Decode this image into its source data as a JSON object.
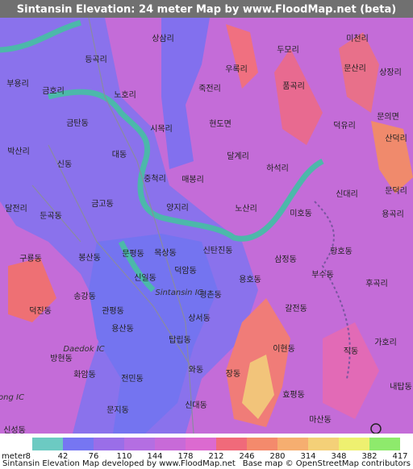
{
  "title": "Sintansin Elevation: 24 meter Map by www.FloodMap.net (beta)",
  "places": [
    "상삼리",
    "미천리",
    "두모리",
    "등곡리",
    "문산리",
    "상장리",
    "부용리",
    "우록리",
    "죽전리",
    "금호리",
    "노호리",
    "품곡리",
    "현도면",
    "금탄동",
    "시목리",
    "덕유리",
    "문의면",
    "산덕리",
    "박산리",
    "대동",
    "달계리",
    "신동",
    "중척리",
    "매봉리",
    "하석리",
    "신대리",
    "문덕리",
    "달전리",
    "금고동",
    "양지리",
    "노산리",
    "미호동",
    "용곡리",
    "둔곡동",
    "황호동",
    "구룡동",
    "봉산동",
    "문평동",
    "목상동",
    "신탄진동",
    "삼정동",
    "덕암동",
    "부수동",
    "신일동",
    "평촌동",
    "용호동",
    "후곡리",
    "송강동",
    "덕진동",
    "관평동",
    "갈전동",
    "상서동",
    "용산동",
    "탑립동",
    "이현동",
    "가호리",
    "직동",
    "방현동",
    "화암동",
    "와동",
    "장동",
    "전민동",
    "내탑동",
    "효평동",
    "문지동",
    "신대동",
    "마산동",
    "신성동",
    "Sintansin IC",
    "Daedok IC",
    "ong IC"
  ],
  "legend": {
    "unit": "meter",
    "ticks": [
      8,
      42,
      76,
      110,
      144,
      178,
      212,
      246,
      280,
      314,
      348,
      382,
      417
    ],
    "colors": [
      "#6ccac2",
      "#7676f2",
      "#9a6ee8",
      "#b46ee2",
      "#c86ad8",
      "#dc6ad0",
      "#f06a7a",
      "#f48a6c",
      "#f6ae70",
      "#f4d078",
      "#eef070",
      "#8eea6c"
    ]
  },
  "footer": {
    "left": "Sintansin Elevation Map developed by www.FloodMap.net",
    "right": "Base map © OpenStreetMap contributors"
  }
}
